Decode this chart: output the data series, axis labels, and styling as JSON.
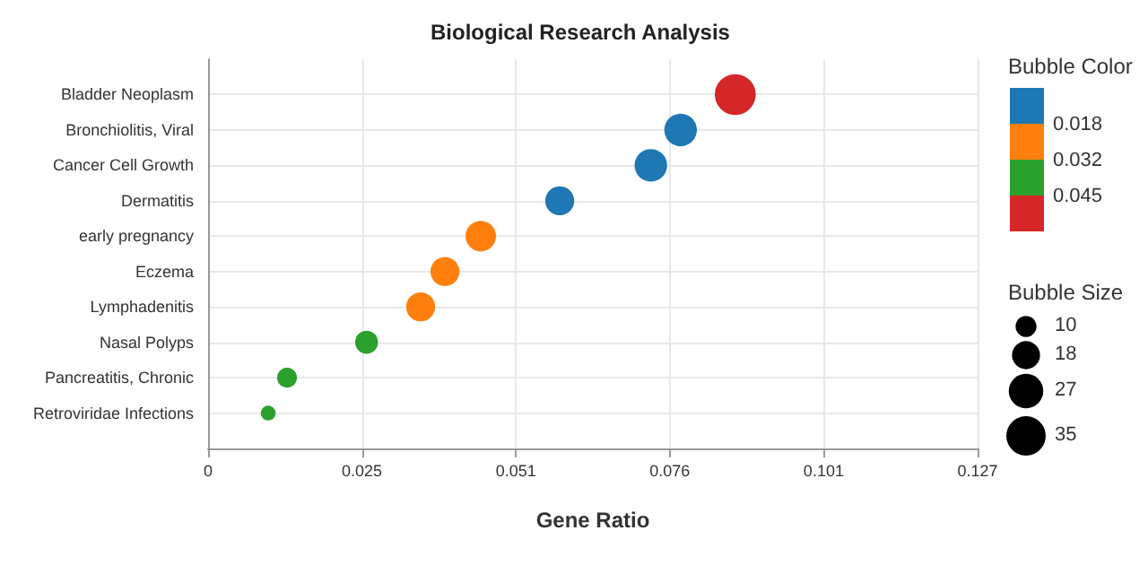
{
  "chart_data": {
    "type": "bubble",
    "title": "Biological Research Analysis",
    "xlabel": "Gene Ratio",
    "clabel": "Bubble Color",
    "legend_title": "Bubble Size",
    "categories": [
      "Bladder Neoplasm",
      "Bronchiolitis, Viral",
      "Cancer Cell Growth",
      "Dermatitis",
      "early pregnancy",
      "Eczema",
      "Lymphadenitis",
      "Nasal Polyps",
      "Pancreatitis, Chronic",
      "Retroviridae Infections"
    ],
    "orientation": "horizontal",
    "series": [
      {
        "color": "#1f77b4",
        "values": [
          null,
          0.0778,
          0.0729,
          0.0579,
          null,
          null,
          null,
          null,
          null,
          null
        ],
        "sizes": [
          null,
          24,
          24,
          19,
          null,
          null,
          null,
          null,
          null,
          null
        ]
      },
      {
        "color": "#ff7f0e",
        "values": [
          null,
          null,
          null,
          null,
          0.0449,
          0.039,
          0.035,
          null,
          null,
          null
        ],
        "sizes": [
          null,
          null,
          null,
          null,
          21,
          19,
          19,
          null,
          null,
          null
        ]
      },
      {
        "color": "#2ca02c",
        "values": [
          null,
          null,
          null,
          null,
          null,
          null,
          null,
          0.0261,
          0.013,
          0.0099
        ],
        "sizes": [
          null,
          null,
          null,
          null,
          null,
          null,
          null,
          12,
          9,
          5
        ]
      },
      {
        "color": "#d62728",
        "values": [
          0.0868,
          null,
          null,
          null,
          null,
          null,
          null,
          null,
          null,
          null
        ],
        "sizes": [
          38,
          null,
          null,
          null,
          null,
          null,
          null,
          null,
          null,
          null
        ]
      }
    ],
    "cticks": [
      0.018,
      0.032,
      0.045
    ],
    "size_legend": [
      10,
      18,
      27,
      35
    ],
    "xlim": [
      0,
      0.1267
    ],
    "xticks": [
      {
        "value": 0,
        "label": "0"
      },
      {
        "value": 0.02534,
        "label": "0.025"
      },
      {
        "value": 0.05068,
        "label": "0.051"
      },
      {
        "value": 0.07602,
        "label": "0.076"
      },
      {
        "value": 0.10136,
        "label": "0.101"
      },
      {
        "value": 0.1267,
        "label": "0.127"
      }
    ],
    "grid": true
  }
}
